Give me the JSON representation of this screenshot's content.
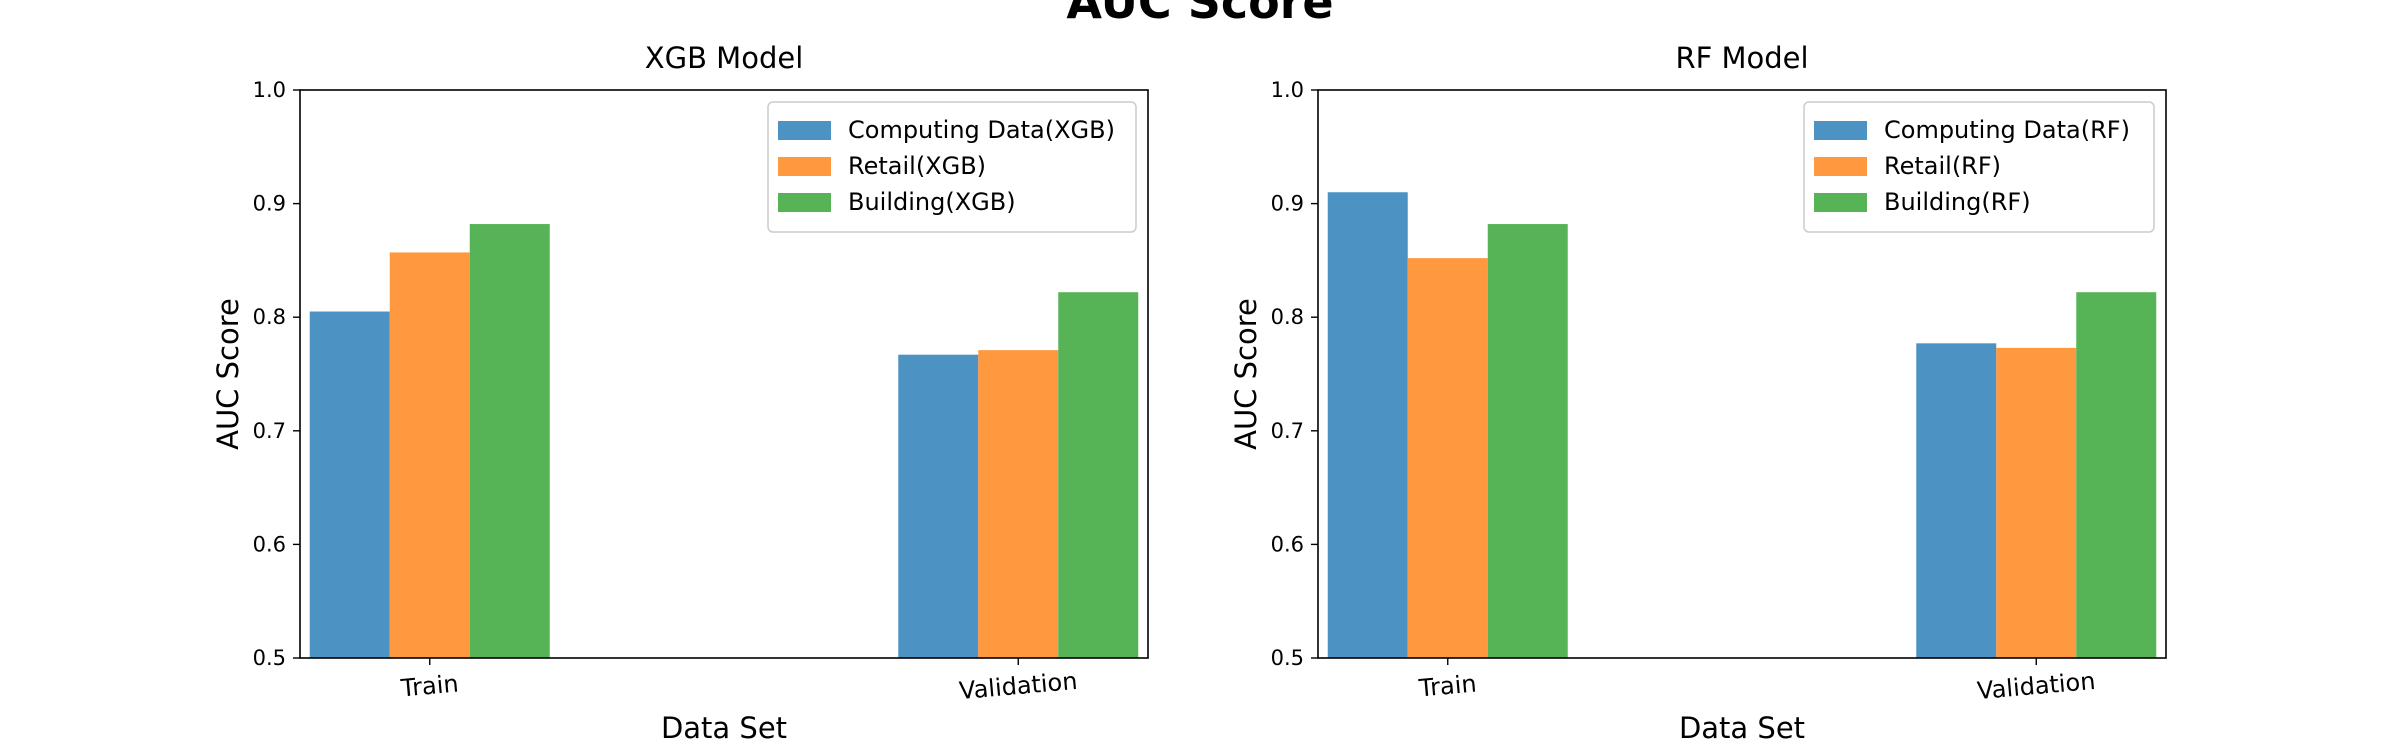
{
  "figure": {
    "title": "AUC Score"
  },
  "chart_data": [
    {
      "type": "bar",
      "title": "XGB Model",
      "xlabel": "Data Set",
      "ylabel": "AUC Score",
      "ylim": [
        0.5,
        1.0
      ],
      "yticks": [
        "0.5",
        "0.6",
        "0.7",
        "0.8",
        "0.9",
        "1.0"
      ],
      "categories": [
        "Train",
        "Validation"
      ],
      "legend_position": "upper right",
      "grid": false,
      "series": [
        {
          "name": "Computing Data(XGB)",
          "color": "#4c92c3",
          "values": [
            0.805,
            0.767
          ]
        },
        {
          "name": "Retail(XGB)",
          "color": "#ff993f",
          "values": [
            0.857,
            0.771
          ]
        },
        {
          "name": "Building(XGB)",
          "color": "#56b356",
          "values": [
            0.882,
            0.822
          ]
        }
      ]
    },
    {
      "type": "bar",
      "title": "RF Model",
      "xlabel": "Data Set",
      "ylabel": "AUC Score",
      "ylim": [
        0.5,
        1.0
      ],
      "yticks": [
        "0.5",
        "0.6",
        "0.7",
        "0.8",
        "0.9",
        "1.0"
      ],
      "categories": [
        "Train",
        "Validation"
      ],
      "legend_position": "upper right",
      "grid": false,
      "series": [
        {
          "name": "Computing Data(RF)",
          "color": "#4c92c3",
          "values": [
            0.91,
            0.777
          ]
        },
        {
          "name": "Retail(RF)",
          "color": "#ff993f",
          "values": [
            0.852,
            0.773
          ]
        },
        {
          "name": "Building(RF)",
          "color": "#56b356",
          "values": [
            0.882,
            0.822
          ]
        }
      ]
    }
  ]
}
